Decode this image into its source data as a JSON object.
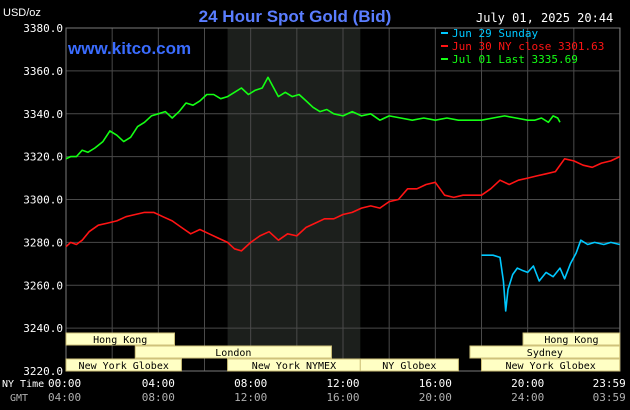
{
  "header": {
    "title": "24 Hour Spot Gold (Bid)",
    "unit": "USD/oz",
    "date": "July 01, 2025 20:44",
    "site": "www.kitco.com"
  },
  "colors": {
    "background": "#000000",
    "grid": "#4a4a4a",
    "night_shade": "#1c1f1c",
    "title": "#5a7dff",
    "site": "#3a6cff",
    "sun": "#00c8ff",
    "mon": "#ff1414",
    "tue": "#14ff14",
    "session_fill": "#ffffc4",
    "session_border": "#cfc27a",
    "session_text": "#000000",
    "axis_text": "#ffffff",
    "gmt_text": "#b0b0b0"
  },
  "chart_data": {
    "type": "line",
    "title": "24 Hour Spot Gold (Bid)",
    "ylabel": "USD/oz",
    "ylim": [
      3220,
      3380
    ],
    "xlim_hours": [
      0,
      24
    ],
    "grid": true,
    "legend_position": "top-right",
    "y_ticks": [
      "3220.0",
      "3240.0",
      "3260.0",
      "3280.0",
      "3300.0",
      "3320.0",
      "3340.0",
      "3360.0",
      "3380.0"
    ],
    "x_ticks_ny": [
      "00:00",
      "04:00",
      "08:00",
      "12:00",
      "16:00",
      "20:00",
      "23:59"
    ],
    "x_ticks_gmt": [
      "04:00",
      "08:00",
      "12:00",
      "16:00",
      "20:00",
      "24:00",
      "03:59"
    ],
    "row_labels": {
      "ny": "NY Time",
      "gmt": "GMT"
    },
    "shaded_range_hours": [
      7.0,
      12.75
    ],
    "legend": [
      {
        "key": "sun",
        "label": "Jun 29 Sunday"
      },
      {
        "key": "mon",
        "label": "Jun 30 NY close 3301.63"
      },
      {
        "key": "tue",
        "label": "Jul 01 Last 3335.69"
      }
    ],
    "series": [
      {
        "key": "sun",
        "x": [
          18.0,
          18.5,
          18.8,
          18.95,
          19.05,
          19.15,
          19.35,
          19.55,
          19.75,
          20.0,
          20.25,
          20.5,
          20.8,
          21.1,
          21.4,
          21.6,
          21.85,
          22.1,
          22.3,
          22.6,
          22.9,
          23.3,
          23.6,
          23.99
        ],
        "values": [
          3274,
          3274,
          3273,
          3262,
          3248,
          3258,
          3265,
          3268,
          3267,
          3266,
          3269,
          3262,
          3266,
          3264,
          3268,
          3263,
          3270,
          3275,
          3281,
          3279,
          3280,
          3279,
          3280,
          3279
        ]
      },
      {
        "key": "mon",
        "x": [
          0.0,
          0.2,
          0.45,
          0.7,
          1.0,
          1.4,
          1.8,
          2.2,
          2.6,
          3.0,
          3.4,
          3.8,
          4.2,
          4.6,
          5.0,
          5.4,
          5.8,
          6.2,
          6.6,
          7.0,
          7.3,
          7.6,
          8.0,
          8.4,
          8.8,
          9.2,
          9.6,
          10.0,
          10.4,
          10.8,
          11.2,
          11.6,
          12.0,
          12.4,
          12.8,
          13.2,
          13.6,
          14.0,
          14.4,
          14.8,
          15.2,
          15.6,
          16.0,
          16.4,
          16.8,
          17.2,
          17.6,
          18.0,
          18.4,
          18.8,
          19.2,
          19.6,
          20.0,
          20.4,
          20.8,
          21.2,
          21.6,
          22.0,
          22.4,
          22.8,
          23.2,
          23.6,
          23.99
        ],
        "values": [
          3278,
          3280,
          3279,
          3281,
          3285,
          3288,
          3289,
          3290,
          3292,
          3293,
          3294,
          3294,
          3292,
          3290,
          3287,
          3284,
          3286,
          3284,
          3282,
          3280,
          3277,
          3276,
          3280,
          3283,
          3285,
          3281,
          3284,
          3283,
          3287,
          3289,
          3291,
          3291,
          3293,
          3294,
          3296,
          3297,
          3296,
          3299,
          3300,
          3305,
          3305,
          3307,
          3308,
          3302,
          3301,
          3302,
          3302,
          3302,
          3305,
          3309,
          3307,
          3309,
          3310,
          3311,
          3312,
          3313,
          3319,
          3318,
          3316,
          3315,
          3317,
          3318,
          3320
        ]
      },
      {
        "key": "tue",
        "x": [
          0.0,
          0.2,
          0.45,
          0.7,
          0.95,
          1.25,
          1.6,
          1.9,
          2.2,
          2.5,
          2.8,
          3.1,
          3.4,
          3.7,
          4.0,
          4.3,
          4.6,
          4.9,
          5.2,
          5.5,
          5.8,
          6.1,
          6.4,
          6.7,
          7.0,
          7.3,
          7.6,
          7.9,
          8.2,
          8.5,
          8.75,
          8.95,
          9.2,
          9.5,
          9.8,
          10.1,
          10.4,
          10.7,
          11.0,
          11.3,
          11.6,
          12.0,
          12.4,
          12.8,
          13.2,
          13.6,
          14.0,
          14.5,
          15.0,
          15.5,
          16.0,
          16.5,
          17.0,
          17.5,
          18.0,
          18.5,
          19.0,
          19.5,
          20.0,
          20.3,
          20.6,
          20.9,
          21.1,
          21.3,
          21.4
        ],
        "values": [
          3319,
          3320,
          3320,
          3323,
          3322,
          3324,
          3327,
          3332,
          3330,
          3327,
          3329,
          3334,
          3336,
          3339,
          3340,
          3341,
          3338,
          3341,
          3345,
          3344,
          3346,
          3349,
          3349,
          3347,
          3348,
          3350,
          3352,
          3349,
          3351,
          3352,
          3357,
          3353,
          3348,
          3350,
          3348,
          3349,
          3346,
          3343,
          3341,
          3342,
          3340,
          3339,
          3341,
          3339,
          3340,
          3337,
          3339,
          3338,
          3337,
          3338,
          3337,
          3338,
          3337,
          3337,
          3337,
          3338,
          3339,
          3338,
          3337,
          3337,
          3338,
          3336,
          3339,
          3338,
          3336
        ]
      }
    ],
    "sessions": [
      {
        "label": "Hong Kong",
        "row": 0,
        "start_h": 0.0,
        "end_h": 4.7
      },
      {
        "label": "Hong Kong",
        "row": 0,
        "start_h": 19.8,
        "end_h": 23.99
      },
      {
        "label": "London",
        "row": 1,
        "start_h": 3.0,
        "end_h": 11.5
      },
      {
        "label": "Sydney",
        "row": 1,
        "start_h": 17.5,
        "end_h": 23.99
      },
      {
        "label": "New York Globex",
        "row": 2,
        "start_h": 0.0,
        "end_h": 5.0
      },
      {
        "label": "New York NYMEX",
        "row": 2,
        "start_h": 7.0,
        "end_h": 12.75
      },
      {
        "label": "NY Globex",
        "row": 2,
        "start_h": 12.75,
        "end_h": 17.0
      },
      {
        "label": "New York Globex",
        "row": 2,
        "start_h": 18.0,
        "end_h": 23.99
      }
    ]
  }
}
